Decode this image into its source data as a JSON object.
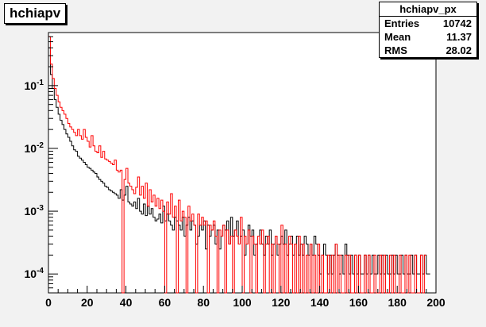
{
  "title": "hchiapv",
  "stats": {
    "name": "hchiapv_px",
    "rows": [
      {
        "label": "Entries",
        "value": "10742"
      },
      {
        "label": "Mean",
        "value": "11.37"
      },
      {
        "label": "RMS",
        "value": "28.02"
      }
    ]
  },
  "colors": {
    "series_black": "#000000",
    "series_red": "#ff0000",
    "background": "#f2f2f2",
    "plot_bg": "#ffffff"
  },
  "chart_data": {
    "type": "line",
    "title": "hchiapv",
    "xlabel": "",
    "ylabel": "",
    "xlim": [
      0,
      200
    ],
    "ylim": [
      5e-05,
      0.7
    ],
    "y_scale": "log",
    "bin_width": 1,
    "x_ticks": [
      0,
      20,
      40,
      60,
      80,
      100,
      120,
      140,
      160,
      180,
      200
    ],
    "x_tick_labels": [
      "0",
      "20",
      "40",
      "60",
      "80",
      "100",
      "120",
      "140",
      "160",
      "180",
      "200"
    ],
    "y_ticks": [
      0.0001,
      0.001,
      0.01,
      0.1
    ],
    "y_tick_labels": [
      {
        "base": "10",
        "exp": "-4"
      },
      {
        "base": "10",
        "exp": "-3"
      },
      {
        "base": "10",
        "exp": "-2"
      },
      {
        "base": "10",
        "exp": "-1"
      }
    ],
    "series": [
      {
        "color": "#000000",
        "x_start": 0,
        "values": [
          0.4,
          0.15,
          0.09,
          0.06,
          0.045,
          0.035,
          0.028,
          0.024,
          0.02,
          0.017,
          0.015,
          0.013,
          0.011,
          0.0095,
          0.009,
          0.0075,
          0.007,
          0.0065,
          0.006,
          0.0055,
          0.005,
          0.0048,
          0.0045,
          0.0042,
          0.004,
          0.0035,
          0.0032,
          0.003,
          0.0028,
          0.0025,
          0.0024,
          0.0022,
          0.0021,
          0.002,
          0.0019,
          0.0018,
          0.0016,
          0.0022,
          0.0015,
          0.0018,
          0.0025,
          0.0014,
          0.0013,
          0.0012,
          0.0014,
          0.0011,
          0.0016,
          0.001,
          0.0009,
          0.0013,
          0.00085,
          0.0012,
          0.0009,
          0.0011,
          0.0008,
          0.0007,
          0.00075,
          0.0009,
          0.00065,
          0.0012,
          0.0007,
          0.0009,
          0.0007,
          0.0006,
          0.0005,
          0.0008,
          0.0007,
          0.0006,
          0.0005,
          0.0008,
          0.0004,
          0.0006,
          0.0008,
          0.0005,
          0.0007,
          0.0006,
          0.0003,
          0.0004,
          0.0006,
          0.0005,
          0.0007,
          0.00025,
          0.0006,
          0.0004,
          0.0005,
          0.0006,
          0.0003,
          0.0005,
          0.00025,
          0.0004,
          0.0006,
          0.0005,
          0.0007,
          0.0003,
          0.0008,
          0.0004,
          0.0005,
          0.0007,
          0.0003,
          0.0004,
          0.0005,
          0.0002,
          0.0003,
          0.0006,
          0.0004,
          0.0005,
          0.0002,
          0.0003,
          0.0004,
          0.0005,
          0.0003,
          0.0002,
          0.0004,
          0.0003,
          0.0005,
          0.0002,
          0.0003,
          0.0004,
          0.0002,
          0.0003,
          0.0004,
          0.0003,
          0.0005,
          0.0002,
          0.0003,
          0.0004,
          0.0002,
          0.0003,
          0.0004,
          0.0002,
          0.0003,
          0.0002,
          0.0004,
          0.0003,
          0.0002,
          0.0003,
          0.0002,
          0.0004,
          0.0003,
          0.0002,
          0.0001,
          0.0002,
          0.0003,
          0.0002,
          0.0001,
          0.0002,
          0.0001,
          0.0002,
          0.0003,
          0.0002,
          0.0001,
          0.0002,
          0.0001,
          0.0003,
          0.0002,
          0.0001,
          0.0002,
          0.0001,
          0.0002,
          0.0001,
          0.0002,
          0.0001,
          0.0001,
          0.0002,
          0.0001,
          0.0002,
          0.0001,
          0.0002,
          0.0001,
          0.0001,
          0.0002,
          0.0001,
          0.0002,
          0.0001,
          0.0002,
          0.0001,
          0.0001,
          0.0002,
          0.0001,
          0.0002,
          0.0001,
          0.0001,
          0.0002,
          0.0001,
          0.0002,
          0.0001,
          0.0001,
          0.0002,
          0.0001,
          0.0002,
          0.0001,
          0.0001,
          0.0002,
          0.0001,
          0.0002,
          0.0001,
          0.0001
        ]
      },
      {
        "color": "#ff0000",
        "x_start": 0,
        "values": [
          0.6,
          0.22,
          0.13,
          0.09,
          0.07,
          0.055,
          0.045,
          0.04,
          0.035,
          0.03,
          0.025,
          0.022,
          0.02,
          0.018,
          0.016,
          0.02,
          0.016,
          0.014,
          0.02,
          0.015,
          0.013,
          0.0105,
          0.016,
          0.011,
          0.009,
          0.0085,
          0.011,
          0.0072,
          0.009,
          0.0068,
          0.0065,
          0.0062,
          0.0058,
          0.0055,
          0.0065,
          0.0045,
          0.0042,
          0.0045,
          2e-05,
          0.0032,
          0.0048,
          0.0028,
          0.0025,
          0.0022,
          0.0019,
          0.0024,
          0.0035,
          0.0018,
          0.0025,
          0.0016,
          0.0028,
          0.0012,
          0.0022,
          0.0014,
          0.0018,
          0.0012,
          0.0016,
          0.0011,
          0.0015,
          0.001,
          2e-05,
          0.0014,
          0.0009,
          0.0019,
          0.0008,
          0.0012,
          2e-05,
          0.0015,
          0.0007,
          0.001,
          0.0008,
          2e-05,
          0.0012,
          0.0007,
          0.0009,
          0.0006,
          2e-05,
          0.0009,
          0.0006,
          0.0008,
          0.0006,
          0.0007,
          2e-05,
          0.0006,
          0.0005,
          0.0007,
          0.0004,
          2e-05,
          0.0005,
          0.0004,
          0.0006,
          2e-05,
          0.0005,
          0.0003,
          0.0004,
          2e-05,
          0.0005,
          0.0004,
          0.0003,
          0.0008,
          2e-05,
          0.0004,
          0.0003,
          0.0005,
          2e-05,
          0.0004,
          0.0003,
          2e-05,
          0.0004,
          0.0003,
          0.0005,
          2e-05,
          0.0003,
          0.0004,
          2e-05,
          0.0003,
          2e-05,
          0.0004,
          0.0003,
          2e-05,
          0.0006,
          2e-05,
          0.0003,
          2e-05,
          0.0004,
          0.0003,
          2e-05,
          0.0003,
          2e-05,
          0.0004,
          2e-05,
          0.0003,
          2e-05,
          0.0002,
          2e-05,
          0.0003,
          2e-05,
          0.0002,
          2e-05,
          0.0003,
          2e-05,
          0.0002,
          2e-05,
          2e-05,
          0.0002,
          2e-05,
          0.0002,
          2e-05,
          0.0003,
          2e-05,
          0.0002,
          2e-05,
          2e-05,
          0.0002,
          2e-05,
          0.0002,
          2e-05,
          2e-05,
          0.0002,
          2e-05,
          0.0002,
          2e-05,
          2e-05,
          0.0002,
          2e-05,
          0.0002,
          2e-05,
          2e-05,
          0.0002,
          2e-05,
          2e-05,
          0.0002,
          2e-05,
          0.0002,
          2e-05,
          2e-05,
          0.0002,
          2e-05,
          0.0002,
          2e-05,
          2e-05,
          0.0002,
          2e-05,
          2e-05,
          0.0002,
          2e-05,
          0.0002,
          2e-05,
          2e-05,
          0.0002,
          2e-05,
          2e-05,
          0.0002,
          2e-05,
          0.0002
        ]
      }
    ]
  }
}
